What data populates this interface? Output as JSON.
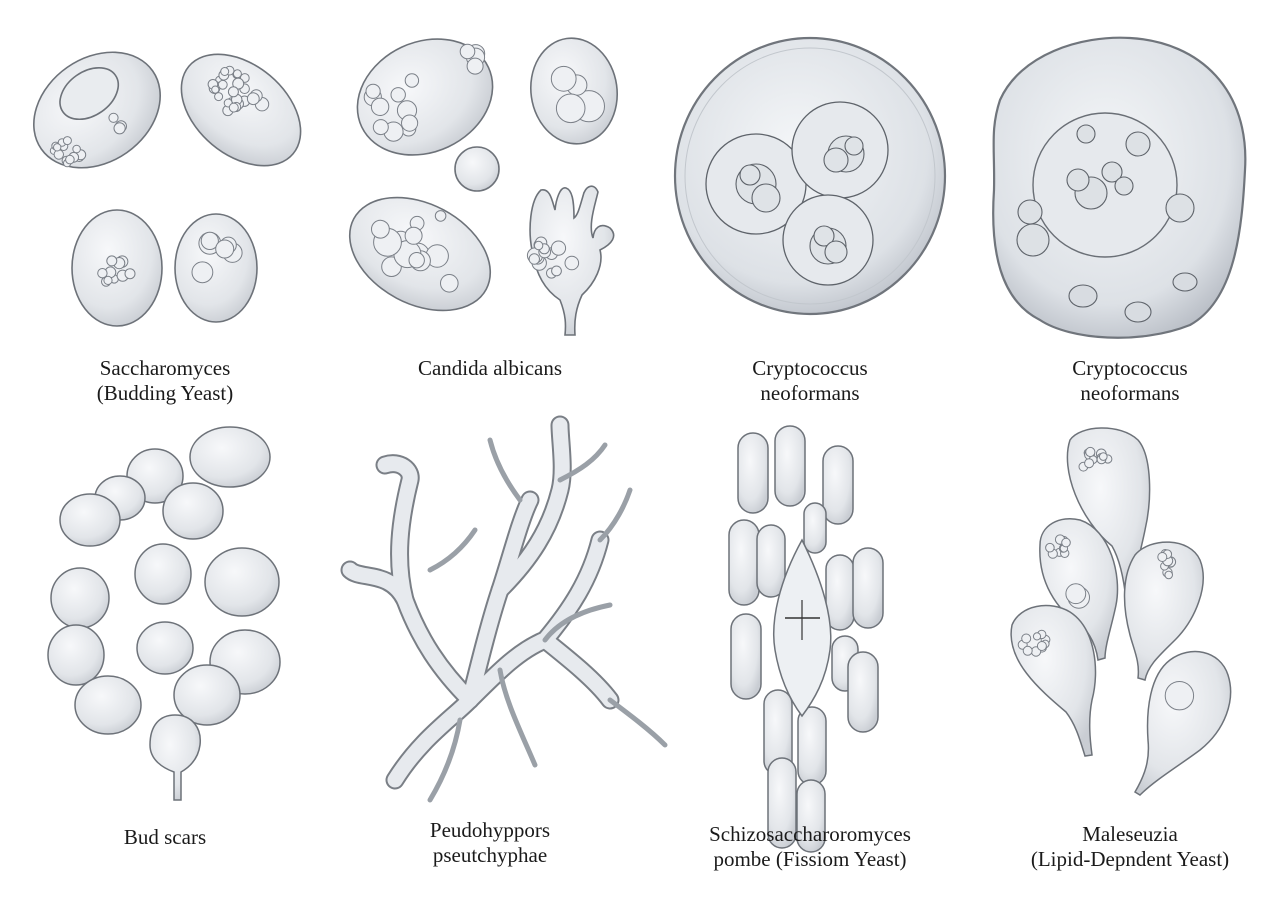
{
  "plate": {
    "panels": [
      {
        "id": "saccharomyces",
        "lines": [
          "Saccharomyces",
          "(Budding Yeast)"
        ]
      },
      {
        "id": "candida",
        "lines": [
          "Candida albicans"
        ]
      },
      {
        "id": "cryptococcus-1",
        "lines": [
          "Cryptococcus",
          "neoformans"
        ]
      },
      {
        "id": "cryptococcus-2",
        "lines": [
          "Cryptococcus",
          "neoformans"
        ]
      },
      {
        "id": "bud-scars",
        "lines": [
          "Bud scars"
        ]
      },
      {
        "id": "pseudohyphae",
        "lines": [
          "Peudohyppors",
          "pseutchyphae"
        ]
      },
      {
        "id": "schizosaccharomyces",
        "lines": [
          "Schizosaccharoromyces",
          "pombe (Fissiom Yeast)"
        ]
      },
      {
        "id": "malassezia",
        "lines": [
          "Maleseuzia",
          "(Lipid-Depndent Yeast)"
        ]
      }
    ]
  },
  "colors": {
    "cell_fill": "#e3e6ea",
    "cell_fill_light": "#eef0f3",
    "cell_stroke": "#6d7279",
    "inner_stroke": "#7b8088",
    "text": "#1a1a1a"
  }
}
